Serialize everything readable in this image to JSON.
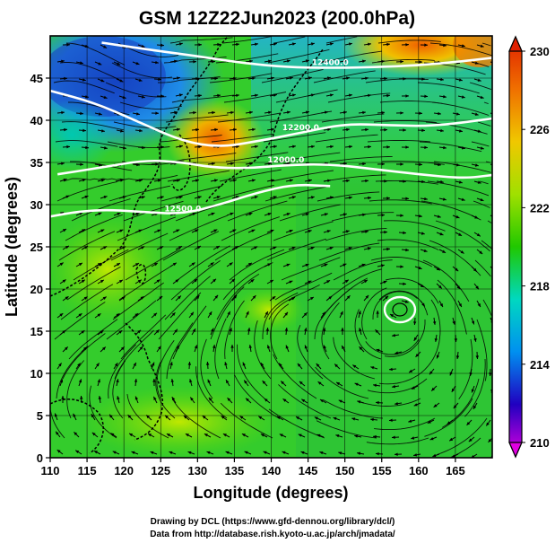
{
  "chart_data": {
    "type": "heatmap",
    "title": "GSM 12Z22Jun2023 (200.0hPa)",
    "xlabel": "Longitude (degrees)",
    "ylabel": "Latitude  (degrees)",
    "xlim": [
      110,
      170
    ],
    "ylim": [
      0,
      50
    ],
    "x_ticks": [
      "110",
      "115",
      "120",
      "125",
      "130",
      "135",
      "140",
      "145",
      "150",
      "155",
      "160",
      "165"
    ],
    "y_ticks": [
      "0",
      "5",
      "10",
      "15",
      "20",
      "25",
      "30",
      "35",
      "40",
      "45"
    ],
    "grid": true,
    "colorbar": {
      "placement": "right",
      "min": 210,
      "max": 230,
      "tick_labels": [
        "210",
        "214",
        "218",
        "222",
        "226",
        "230"
      ],
      "colors": [
        "#e000e0",
        "#2000c0",
        "#0090f0",
        "#00d8c0",
        "#20c800",
        "#a0e000",
        "#f0c800",
        "#f07000",
        "#e02000"
      ]
    },
    "contours": [
      {
        "label": "12400.0",
        "points": [
          [
            117,
            49.2
          ],
          [
            124,
            48.3
          ],
          [
            130,
            47.6
          ],
          [
            136,
            46.8
          ],
          [
            142,
            46.3
          ],
          [
            148,
            46.2
          ],
          [
            154,
            46.3
          ],
          [
            160,
            46.5
          ],
          [
            166,
            47.0
          ],
          [
            170,
            47.4
          ]
        ]
      },
      {
        "label": "12200.0",
        "points": [
          [
            110,
            43.5
          ],
          [
            116,
            42.1
          ],
          [
            122,
            39.8
          ],
          [
            128,
            37.5
          ],
          [
            133,
            36.8
          ],
          [
            138,
            37.5
          ],
          [
            144,
            38.5
          ],
          [
            150,
            39.6
          ],
          [
            156,
            39.4
          ],
          [
            162,
            39.3
          ],
          [
            170,
            40.2
          ]
        ]
      },
      {
        "label": "12000.0",
        "points": [
          [
            111,
            33.6
          ],
          [
            117,
            34.4
          ],
          [
            123,
            35.3
          ],
          [
            128,
            35.0
          ],
          [
            132,
            34.4
          ],
          [
            137,
            34.3
          ],
          [
            142,
            34.7
          ],
          [
            148,
            34.8
          ],
          [
            154,
            34.2
          ],
          [
            160,
            33.6
          ],
          [
            166,
            33.1
          ],
          [
            170,
            33.5
          ]
        ]
      },
      {
        "label": "12500.0",
        "points": [
          [
            110,
            28.6
          ],
          [
            114,
            29.2
          ],
          [
            118,
            29.4
          ],
          [
            123,
            29.1
          ],
          [
            128,
            28.9
          ],
          [
            133,
            30.0
          ],
          [
            138,
            31.4
          ],
          [
            143,
            32.4
          ],
          [
            148,
            32.2
          ]
        ]
      }
    ],
    "credits": {
      "drawing": "Drawing by DCL (https://www.gfd-dennou.org/library/dcl/)",
      "data": "Data from http://database.rish.kyoto-u.ac.jp/arch/jmadata/"
    }
  }
}
